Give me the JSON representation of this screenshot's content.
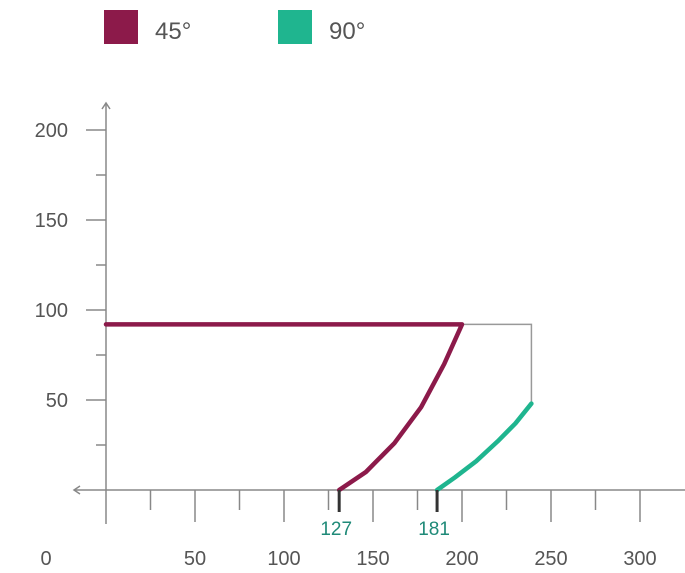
{
  "colors": {
    "axis": "#888888",
    "guide": "#999999",
    "text": "#555555"
  },
  "legend": [
    {
      "label": "45°",
      "color": "#8c1a4a"
    },
    {
      "label": "90°",
      "color": "#1fb58f"
    }
  ],
  "chart_data": {
    "type": "line",
    "title": "",
    "xlabel": "",
    "ylabel": "",
    "origin_label": "0",
    "xlim": [
      0,
      320
    ],
    "ylim": [
      0,
      215
    ],
    "x_ticks": [
      50,
      100,
      150,
      200,
      250,
      300
    ],
    "y_ticks": [
      50,
      100,
      150,
      200
    ],
    "x_minor_step": 25,
    "y_minor_step": 25,
    "grid": false,
    "legend_position": "top-left",
    "series": [
      {
        "name": "45°",
        "color": "#8c1a4a",
        "points": [
          [
            0,
            92
          ],
          [
            200,
            92
          ],
          [
            190,
            70
          ],
          [
            177,
            46
          ],
          [
            162,
            26
          ],
          [
            146,
            10
          ],
          [
            131,
            0
          ]
        ]
      },
      {
        "name": "90°",
        "color": "#1fb58f",
        "points": [
          [
            239,
            48
          ],
          [
            230,
            37
          ],
          [
            220,
            27
          ],
          [
            208,
            16
          ],
          [
            196,
            7
          ],
          [
            186,
            0
          ]
        ]
      }
    ],
    "guide": {
      "color": "#999999",
      "points": [
        [
          200,
          92
        ],
        [
          239,
          92
        ],
        [
          239,
          48
        ]
      ]
    },
    "markers": [
      {
        "x": 131,
        "label": "127",
        "color": "#1f8a78"
      },
      {
        "x": 186,
        "label": "181",
        "color": "#1f8a78"
      }
    ]
  }
}
